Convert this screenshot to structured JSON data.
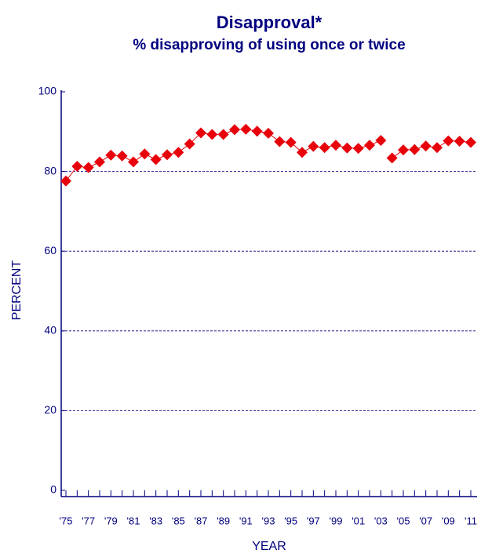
{
  "chart_data": {
    "type": "line",
    "title": "Disapproval*",
    "subtitle": "% disapproving of using once or twice",
    "x_label": "YEAR",
    "y_label": "PERCENT",
    "categories": [
      "'75",
      null,
      "'77",
      null,
      "'79",
      null,
      "'81",
      null,
      "'83",
      null,
      "'85",
      null,
      "'87",
      null,
      "'89",
      null,
      "'91",
      null,
      "'93",
      null,
      "'95",
      null,
      "'97",
      null,
      "'99",
      null,
      "'01",
      null,
      "'03",
      null,
      "'05",
      null,
      "'07",
      null,
      "'09",
      null,
      "'11"
    ],
    "series": [
      {
        "color": "#e8000b",
        "values": [
          77.6,
          81.3,
          81.0,
          82.4,
          84.1,
          83.9,
          82.4,
          84.4,
          83.0,
          84.2,
          84.8,
          86.9,
          89.7,
          89.3,
          89.3,
          90.5,
          90.6,
          90.1,
          89.6,
          87.5,
          87.3,
          84.8,
          86.3,
          86.0,
          86.6,
          85.9,
          85.8,
          86.6,
          87.8,
          null,
          null,
          null,
          null,
          null,
          null,
          null,
          null
        ]
      },
      {
        "color": "#e8000b",
        "values": [
          null,
          null,
          null,
          null,
          null,
          null,
          null,
          null,
          null,
          null,
          null,
          null,
          null,
          null,
          null,
          null,
          null,
          null,
          null,
          null,
          null,
          null,
          null,
          null,
          null,
          null,
          null,
          null,
          null,
          83.4,
          85.4,
          85.5,
          86.4,
          86.0,
          87.7,
          87.6,
          87.3
        ]
      }
    ],
    "ylim": [
      0,
      100
    ],
    "yticks": [
      0,
      20,
      40,
      60,
      80,
      100
    ],
    "grid": true
  }
}
